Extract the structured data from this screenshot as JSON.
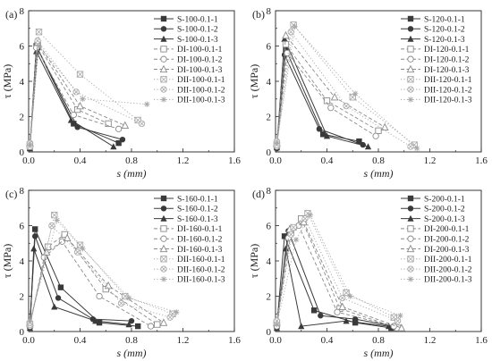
{
  "colors": {
    "S": "#3a3a3a",
    "DI": "#8a8a8a",
    "DII": "#a8a8a8"
  },
  "chart_data": [
    {
      "type": "line",
      "panel_label": "(a)",
      "xlabel": "s (mm)",
      "ylabel": "τ (MPa)",
      "xlim": [
        0,
        1.6
      ],
      "ylim": [
        0,
        8
      ],
      "xticks": [
        "0.0",
        "0.4",
        "0.8",
        "1.2",
        "1.6"
      ],
      "yticks": [
        "0",
        "2",
        "4",
        "6",
        "8"
      ],
      "legend_position": "top-right",
      "series": [
        {
          "name": "S-100-0.1-1",
          "group": "S",
          "marker": "square",
          "points": [
            [
              0.01,
              0.25
            ],
            [
              0.06,
              6.0
            ],
            [
              0.35,
              1.6
            ],
            [
              0.7,
              0.5
            ]
          ]
        },
        {
          "name": "S-100-0.1-2",
          "group": "S",
          "marker": "circle",
          "points": [
            [
              0.01,
              0.3
            ],
            [
              0.07,
              5.85
            ],
            [
              0.38,
              1.4
            ],
            [
              0.73,
              0.7
            ]
          ]
        },
        {
          "name": "S-100-0.1-3",
          "group": "S",
          "marker": "triangle",
          "points": [
            [
              0.01,
              0.2
            ],
            [
              0.06,
              5.7
            ],
            [
              0.33,
              1.8
            ],
            [
              0.66,
              0.3
            ]
          ]
        },
        {
          "name": "DI-100-0.1-1",
          "group": "DI",
          "marker": "square-open",
          "points": [
            [
              0.01,
              0.4
            ],
            [
              0.07,
              6.1
            ],
            [
              0.38,
              2.4
            ],
            [
              0.62,
              1.6
            ]
          ]
        },
        {
          "name": "DI-100-0.1-2",
          "group": "DI",
          "marker": "circle-open",
          "points": [
            [
              0.01,
              0.3
            ],
            [
              0.06,
              5.9
            ],
            [
              0.35,
              2.1
            ],
            [
              0.7,
              1.3
            ]
          ]
        },
        {
          "name": "DI-100-0.1-3",
          "group": "DI",
          "marker": "triangle-open",
          "points": [
            [
              0.01,
              0.5
            ],
            [
              0.07,
              6.2
            ],
            [
              0.4,
              2.6
            ],
            [
              0.75,
              1.5
            ]
          ]
        },
        {
          "name": "DII-100-0.1-1",
          "group": "DII",
          "marker": "square-x",
          "points": [
            [
              0.01,
              0.3
            ],
            [
              0.08,
              6.8
            ],
            [
              0.4,
              4.4
            ],
            [
              0.85,
              1.8
            ]
          ]
        },
        {
          "name": "DII-100-0.1-2",
          "group": "DII",
          "marker": "circle-x",
          "points": [
            [
              0.01,
              0.5
            ],
            [
              0.07,
              6.3
            ],
            [
              0.37,
              3.4
            ],
            [
              0.88,
              1.6
            ]
          ]
        },
        {
          "name": "DII-100-0.1-3",
          "group": "DII",
          "marker": "star",
          "points": [
            [
              0.01,
              0.4
            ],
            [
              0.08,
              6.0
            ],
            [
              0.42,
              3.0
            ],
            [
              0.92,
              2.7
            ]
          ]
        }
      ]
    },
    {
      "type": "line",
      "panel_label": "(b)",
      "xlabel": "s (mm)",
      "ylabel": "τ (MPa)",
      "xlim": [
        0,
        1.6
      ],
      "ylim": [
        0,
        8
      ],
      "xticks": [
        "0.0",
        "0.4",
        "0.8",
        "1.2",
        "1.6"
      ],
      "yticks": [
        "0",
        "2",
        "4",
        "6",
        "8"
      ],
      "legend_position": "top-right",
      "series": [
        {
          "name": "S-120-0.1-1",
          "group": "S",
          "marker": "square",
          "points": [
            [
              0.01,
              0.3
            ],
            [
              0.08,
              5.8
            ],
            [
              0.37,
              1.0
            ],
            [
              0.65,
              0.6
            ]
          ]
        },
        {
          "name": "S-120-0.1-2",
          "group": "S",
          "marker": "circle",
          "points": [
            [
              0.01,
              0.2
            ],
            [
              0.07,
              5.5
            ],
            [
              0.34,
              1.3
            ],
            [
              0.68,
              0.4
            ]
          ]
        },
        {
          "name": "S-120-0.1-3",
          "group": "S",
          "marker": "triangle",
          "points": [
            [
              0.01,
              0.25
            ],
            [
              0.07,
              6.4
            ],
            [
              0.4,
              0.9
            ],
            [
              0.72,
              0.3
            ]
          ]
        },
        {
          "name": "DI-120-0.1-1",
          "group": "DI",
          "marker": "square-open",
          "points": [
            [
              0.01,
              0.4
            ],
            [
              0.08,
              6.1
            ],
            [
              0.4,
              2.9
            ],
            [
              0.8,
              1.2
            ]
          ]
        },
        {
          "name": "DI-120-0.1-2",
          "group": "DI",
          "marker": "circle-open",
          "points": [
            [
              0.01,
              0.3
            ],
            [
              0.09,
              5.6
            ],
            [
              0.43,
              2.5
            ],
            [
              0.78,
              0.9
            ]
          ]
        },
        {
          "name": "DI-120-0.1-3",
          "group": "DI",
          "marker": "triangle-open",
          "points": [
            [
              0.01,
              0.5
            ],
            [
              0.08,
              6.6
            ],
            [
              0.46,
              3.1
            ],
            [
              0.85,
              1.4
            ]
          ]
        },
        {
          "name": "DII-120-0.1-1",
          "group": "DII",
          "marker": "square-x",
          "points": [
            [
              0.01,
              0.4
            ],
            [
              0.14,
              7.2
            ],
            [
              0.6,
              3.1
            ],
            [
              1.08,
              0.4
            ]
          ]
        },
        {
          "name": "DII-120-0.1-2",
          "group": "DII",
          "marker": "circle-x",
          "points": [
            [
              0.01,
              0.6
            ],
            [
              0.12,
              6.8
            ],
            [
              0.55,
              2.6
            ],
            [
              1.05,
              0.3
            ]
          ]
        },
        {
          "name": "DII-120-0.1-3",
          "group": "DII",
          "marker": "star",
          "points": [
            [
              0.01,
              0.5
            ],
            [
              0.15,
              7.1
            ],
            [
              0.62,
              3.3
            ],
            [
              1.1,
              0.2
            ]
          ]
        }
      ]
    },
    {
      "type": "line",
      "panel_label": "(c)",
      "xlabel": "s (mm)",
      "ylabel": "τ (MPa)",
      "xlim": [
        0,
        1.6
      ],
      "ylim": [
        0,
        8
      ],
      "xticks": [
        "0.0",
        "0.4",
        "0.8",
        "1.2",
        "1.6"
      ],
      "yticks": [
        "0",
        "2",
        "4",
        "6",
        "8"
      ],
      "legend_position": "top-right",
      "series": [
        {
          "name": "S-160-0.1-1",
          "group": "S",
          "marker": "square",
          "points": [
            [
              0.01,
              0.3
            ],
            [
              0.05,
              5.8
            ],
            [
              0.25,
              2.5
            ],
            [
              0.55,
              0.5
            ],
            [
              0.85,
              0.3
            ]
          ]
        },
        {
          "name": "S-160-0.1-2",
          "group": "S",
          "marker": "circle",
          "points": [
            [
              0.01,
              0.4
            ],
            [
              0.05,
              5.4
            ],
            [
              0.23,
              1.9
            ],
            [
              0.5,
              0.7
            ],
            [
              0.8,
              0.6
            ]
          ]
        },
        {
          "name": "S-160-0.1-3",
          "group": "S",
          "marker": "triangle",
          "points": [
            [
              0.01,
              0.2
            ],
            [
              0.04,
              4.7
            ],
            [
              0.2,
              1.4
            ],
            [
              0.52,
              0.6
            ],
            [
              0.78,
              0.4
            ]
          ]
        },
        {
          "name": "DI-160-0.1-1",
          "group": "DI",
          "marker": "square-open",
          "points": [
            [
              0.01,
              0.4
            ],
            [
              0.15,
              4.8
            ],
            [
              0.28,
              5.5
            ],
            [
              0.6,
              2.4
            ],
            [
              1.0,
              0.4
            ]
          ]
        },
        {
          "name": "DI-160-0.1-2",
          "group": "DI",
          "marker": "circle-open",
          "points": [
            [
              0.01,
              0.3
            ],
            [
              0.12,
              4.2
            ],
            [
              0.26,
              5.1
            ],
            [
              0.55,
              2.0
            ],
            [
              0.95,
              0.3
            ]
          ]
        },
        {
          "name": "DI-160-0.1-3",
          "group": "DI",
          "marker": "triangle-open",
          "points": [
            [
              0.01,
              0.5
            ],
            [
              0.14,
              4.5
            ],
            [
              0.3,
              5.3
            ],
            [
              0.62,
              2.6
            ],
            [
              1.05,
              0.5
            ]
          ]
        },
        {
          "name": "DII-160-0.1-1",
          "group": "DII",
          "marker": "square-x",
          "points": [
            [
              0.01,
              0.4
            ],
            [
              0.2,
              6.6
            ],
            [
              0.4,
              4.9
            ],
            [
              0.75,
              2.0
            ],
            [
              1.12,
              1.0
            ]
          ]
        },
        {
          "name": "DII-160-0.1-2",
          "group": "DII",
          "marker": "circle-x",
          "points": [
            [
              0.01,
              0.5
            ],
            [
              0.18,
              6.0
            ],
            [
              0.38,
              4.5
            ],
            [
              0.72,
              1.6
            ],
            [
              1.1,
              0.8
            ]
          ]
        },
        {
          "name": "DII-160-0.1-3",
          "group": "DII",
          "marker": "star",
          "points": [
            [
              0.01,
              0.6
            ],
            [
              0.22,
              6.3
            ],
            [
              0.42,
              4.7
            ],
            [
              0.78,
              1.9
            ],
            [
              1.15,
              1.1
            ]
          ]
        }
      ]
    },
    {
      "type": "line",
      "panel_label": "(d)",
      "xlabel": "s (mm)",
      "ylabel": "τ (MPa)",
      "xlim": [
        0,
        1.6
      ],
      "ylim": [
        0,
        8
      ],
      "xticks": [
        "0.0",
        "0.4",
        "0.8",
        "1.2",
        "1.6"
      ],
      "yticks": [
        "0",
        "2",
        "4",
        "6",
        "8"
      ],
      "legend_position": "top-right",
      "series": [
        {
          "name": "S-200-0.1-1",
          "group": "S",
          "marker": "square",
          "points": [
            [
              0.01,
              0.3
            ],
            [
              0.07,
              5.4
            ],
            [
              0.3,
              1.2
            ],
            [
              0.62,
              0.5
            ],
            [
              0.9,
              0.2
            ]
          ]
        },
        {
          "name": "S-200-0.1-2",
          "group": "S",
          "marker": "circle",
          "points": [
            [
              0.01,
              0.4
            ],
            [
              0.1,
              5.7
            ],
            [
              0.35,
              0.9
            ],
            [
              0.62,
              0.7
            ],
            [
              0.92,
              0.3
            ]
          ]
        },
        {
          "name": "S-200-0.1-3",
          "group": "S",
          "marker": "triangle",
          "points": [
            [
              0.01,
              0.2
            ],
            [
              0.08,
              4.7
            ],
            [
              0.2,
              0.3
            ],
            [
              0.55,
              0.6
            ],
            [
              0.88,
              0.3
            ]
          ]
        },
        {
          "name": "DI-200-0.1-1",
          "group": "DI",
          "marker": "square-open",
          "points": [
            [
              0.01,
              0.4
            ],
            [
              0.12,
              5.6
            ],
            [
              0.2,
              6.4
            ],
            [
              0.5,
              1.3
            ],
            [
              0.95,
              0.2
            ]
          ]
        },
        {
          "name": "DI-200-0.1-2",
          "group": "DI",
          "marker": "circle-open",
          "points": [
            [
              0.01,
              0.3
            ],
            [
              0.1,
              5.3
            ],
            [
              0.18,
              6.0
            ],
            [
              0.48,
              1.1
            ],
            [
              0.92,
              0.3
            ]
          ]
        },
        {
          "name": "DI-200-0.1-3",
          "group": "DI",
          "marker": "triangle-open",
          "points": [
            [
              0.01,
              0.5
            ],
            [
              0.11,
              5.8
            ],
            [
              0.22,
              6.2
            ],
            [
              0.52,
              1.4
            ],
            [
              0.98,
              0.2
            ]
          ]
        },
        {
          "name": "DII-200-0.1-1",
          "group": "DII",
          "marker": "square-x",
          "points": [
            [
              0.01,
              0.5
            ],
            [
              0.14,
              5.9
            ],
            [
              0.25,
              6.7
            ],
            [
              0.55,
              2.2
            ],
            [
              0.92,
              0.8
            ]
          ]
        },
        {
          "name": "DII-200-0.1-2",
          "group": "DII",
          "marker": "circle-x",
          "points": [
            [
              0.01,
              0.6
            ],
            [
              0.12,
              5.5
            ],
            [
              0.23,
              6.4
            ],
            [
              0.52,
              1.9
            ],
            [
              0.95,
              0.6
            ]
          ]
        },
        {
          "name": "DII-200-0.1-3",
          "group": "DII",
          "marker": "star",
          "points": [
            [
              0.01,
              0.4
            ],
            [
              0.16,
              5.2
            ],
            [
              0.27,
              6.6
            ],
            [
              0.58,
              2.0
            ],
            [
              0.97,
              0.9
            ]
          ]
        }
      ]
    }
  ]
}
